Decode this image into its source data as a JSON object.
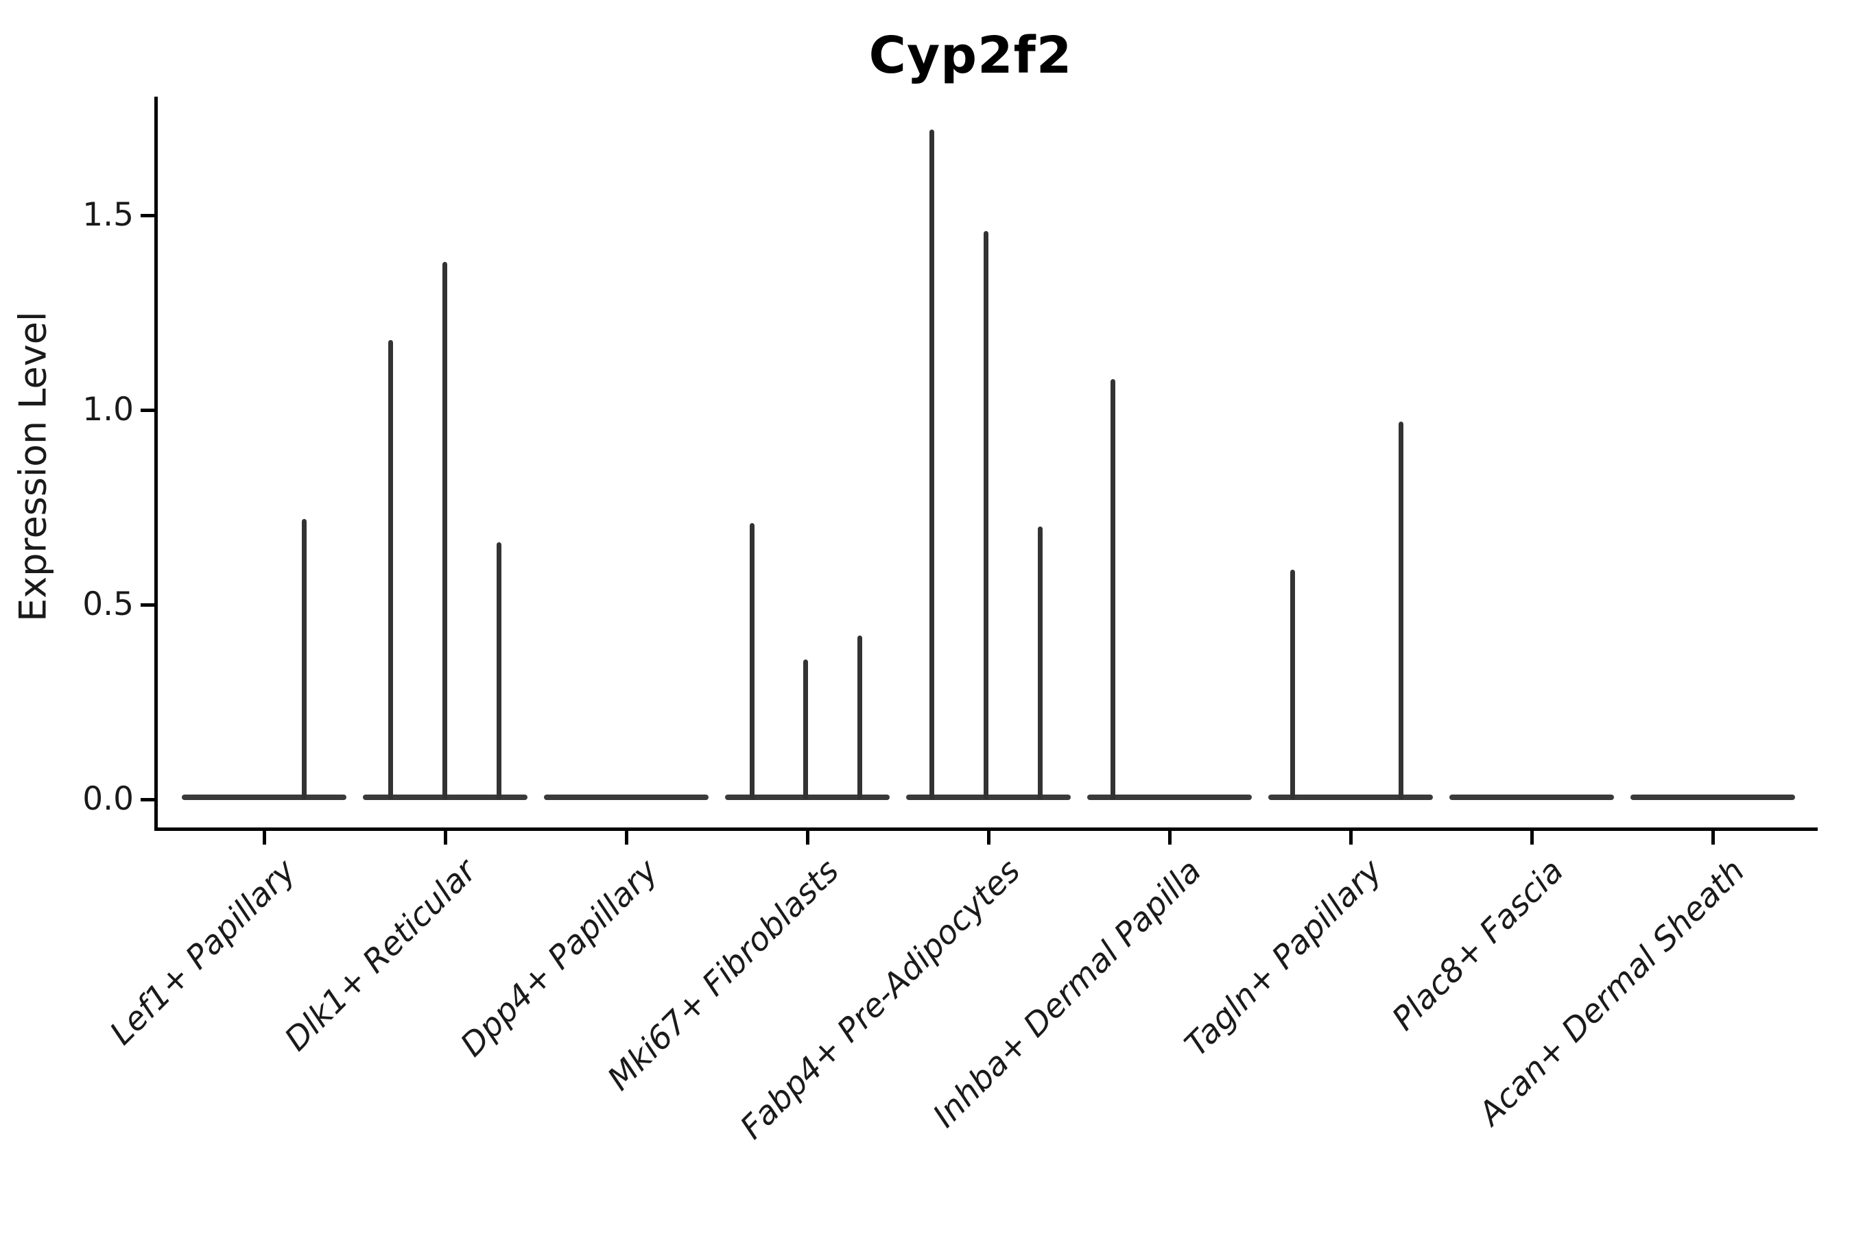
{
  "title": "Cyp2f2",
  "chart_data": {
    "type": "violin",
    "title": "Cyp2f2",
    "ylabel": "Expression Level",
    "xlabel": "",
    "grid": false,
    "legend": "none",
    "yticks": [
      "0.0",
      "0.5",
      "1.0",
      "1.5"
    ],
    "ytick_values": [
      0.0,
      0.5,
      1.0,
      1.5
    ],
    "ylim": [
      -0.08,
      1.8
    ],
    "categories": [
      "Lef1+ Papillary",
      "Dlk1+ Reticular",
      "Dpp4+ Papillary",
      "Mki67+ Fibroblasts",
      "Fabp4+ Pre-Adipocytes",
      "Inhba+ Dermal Papilla",
      "Tagln+ Papillary",
      "Plac8+ Fascia",
      "Acan+ Dermal Sheath"
    ],
    "series": [
      {
        "category": "Lef1+ Papillary",
        "baseline_at_zero": true,
        "spikes": [
          {
            "dx": 58,
            "value": 0.72
          }
        ]
      },
      {
        "category": "Dlk1+ Reticular",
        "baseline_at_zero": true,
        "spikes": [
          {
            "dx": -80,
            "value": 1.18
          },
          {
            "dx": -1,
            "value": 1.38
          },
          {
            "dx": 78,
            "value": 0.66
          }
        ]
      },
      {
        "category": "Dpp4+ Papillary",
        "baseline_at_zero": true,
        "spikes": []
      },
      {
        "category": "Mki67+ Fibroblasts",
        "baseline_at_zero": true,
        "spikes": [
          {
            "dx": -81,
            "value": 0.71
          },
          {
            "dx": -3,
            "value": 0.36
          },
          {
            "dx": 76,
            "value": 0.42
          }
        ]
      },
      {
        "category": "Fabp4+ Pre-Adipocytes",
        "baseline_at_zero": true,
        "spikes": [
          {
            "dx": -83,
            "value": 1.72
          },
          {
            "dx": -4,
            "value": 1.46
          },
          {
            "dx": 75,
            "value": 0.7
          }
        ]
      },
      {
        "category": "Inhba+ Dermal Papilla",
        "baseline_at_zero": true,
        "spikes": [
          {
            "dx": -83,
            "value": 1.08
          }
        ]
      },
      {
        "category": "Tagln+ Papillary",
        "baseline_at_zero": true,
        "spikes": [
          {
            "dx": -85,
            "value": 0.59
          },
          {
            "dx": 73,
            "value": 0.97
          }
        ]
      },
      {
        "category": "Plac8+ Fascia",
        "baseline_at_zero": true,
        "spikes": []
      },
      {
        "category": "Acan+ Dermal Sheath",
        "baseline_at_zero": true,
        "spikes": []
      }
    ],
    "colors": {
      "violin": "#333333",
      "axis": "#000000",
      "text": "#1a1a1a",
      "background": "#ffffff"
    }
  }
}
